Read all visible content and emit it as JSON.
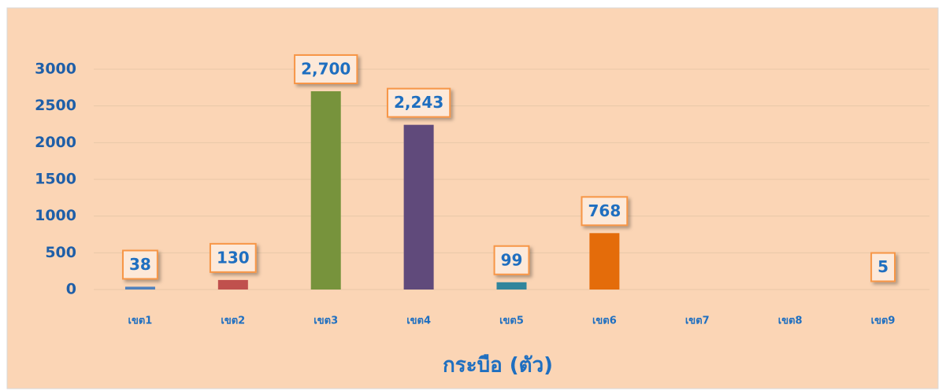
{
  "chart_data": {
    "type": "bar",
    "title": "กระบือ (ตัว)",
    "categories": [
      "เขต1",
      "เขต2",
      "เขต3",
      "เขต4",
      "เขต5",
      "เขต6",
      "เขต7",
      "เขต8",
      "เขต9"
    ],
    "values": [
      38,
      130,
      2700,
      2243,
      99,
      768,
      null,
      null,
      5
    ],
    "value_labels": [
      "38",
      "130",
      "2,700",
      "2,243",
      "99",
      "768",
      null,
      null,
      "5"
    ],
    "colors": [
      "#4f81bd",
      "#c0504d",
      "#77933c",
      "#604a7b",
      "#31859c",
      "#e46c0a",
      null,
      null,
      null
    ],
    "ylim": [
      0,
      3000
    ],
    "yticks": [
      0,
      500,
      1000,
      1500,
      2000,
      2500,
      3000
    ],
    "grid": true
  }
}
